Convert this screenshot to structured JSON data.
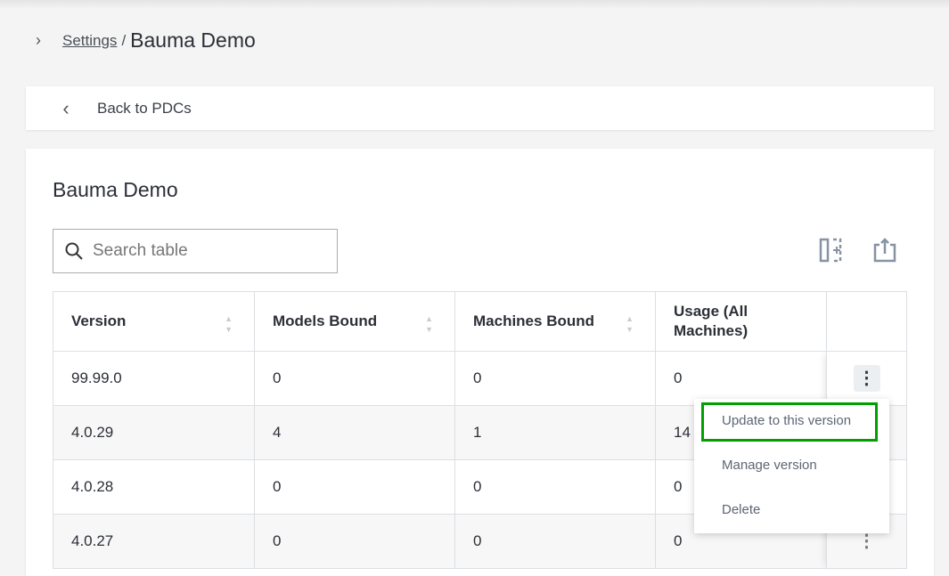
{
  "breadcrumb": {
    "parent": "Settings",
    "separator": "/",
    "current": "Bauma Demo"
  },
  "back": {
    "label": "Back to PDCs"
  },
  "card": {
    "title": "Bauma Demo",
    "search_placeholder": "Search table"
  },
  "table": {
    "columns": [
      "Version",
      "Models Bound",
      "Machines Bound",
      "Usage (All Machines)"
    ],
    "rows": [
      [
        "99.99.0",
        "0",
        "0",
        "0"
      ],
      [
        "4.0.29",
        "4",
        "1",
        "14"
      ],
      [
        "4.0.28",
        "0",
        "0",
        "0"
      ],
      [
        "4.0.27",
        "0",
        "0",
        "0"
      ]
    ]
  },
  "menu": {
    "items": [
      "Update to this version",
      "Manage version",
      "Delete"
    ],
    "highlight_color": "#00a000"
  },
  "icons": {
    "columns": "column-add-icon",
    "export": "export-icon",
    "more": "more-vertical-icon"
  }
}
